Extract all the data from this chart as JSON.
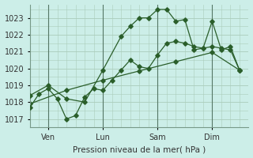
{
  "background_color": "#cceee8",
  "grid_color": "#aaccbb",
  "line_color": "#2a5e2a",
  "marker_color": "#2a5e2a",
  "xlabel": "Pression niveau de la mer( hPa )",
  "ylim": [
    1016.5,
    1023.8
  ],
  "yticks": [
    1017,
    1018,
    1019,
    1020,
    1021,
    1022,
    1023
  ],
  "xtick_labels": [
    "Ven",
    "Lun",
    "Sam",
    "Dim"
  ],
  "xtick_positions": [
    1,
    4,
    7,
    10
  ],
  "vlines": [
    1,
    4,
    7,
    10
  ],
  "xlim": [
    0,
    12
  ],
  "series1_x": [
    0,
    0.5,
    1.0,
    1.5,
    2.0,
    2.5,
    3.0,
    3.5,
    4.0,
    4.5,
    5.0,
    5.5,
    6.0,
    6.5,
    7.0,
    7.5,
    8.0,
    8.5,
    9.0,
    9.5,
    10.0,
    10.5,
    11.0,
    11.5
  ],
  "series1_y": [
    1017.7,
    1018.5,
    1018.8,
    1018.2,
    1017.0,
    1017.2,
    1018.3,
    1018.8,
    1018.7,
    1019.3,
    1019.9,
    1020.5,
    1020.1,
    1020.0,
    1020.8,
    1021.5,
    1021.6,
    1021.5,
    1021.3,
    1021.2,
    1021.3,
    1021.2,
    1021.1,
    1019.9
  ],
  "series2_x": [
    0,
    1.0,
    2.0,
    3.0,
    4.0,
    5.0,
    5.5,
    6.0,
    6.5,
    7.0,
    7.5,
    8.0,
    8.5,
    9.0,
    9.5,
    10.0,
    10.5,
    11.0,
    11.5
  ],
  "series2_y": [
    1018.4,
    1019.0,
    1018.2,
    1018.0,
    1019.9,
    1021.9,
    1022.5,
    1023.0,
    1023.0,
    1023.5,
    1023.5,
    1022.8,
    1022.9,
    1021.1,
    1021.2,
    1022.8,
    1021.1,
    1021.3,
    1019.9
  ],
  "series3_x": [
    0,
    2.0,
    4.0,
    6.0,
    8.0,
    10.0,
    11.5
  ],
  "series3_y": [
    1017.9,
    1018.7,
    1019.3,
    1019.85,
    1020.4,
    1020.95,
    1019.9
  ]
}
